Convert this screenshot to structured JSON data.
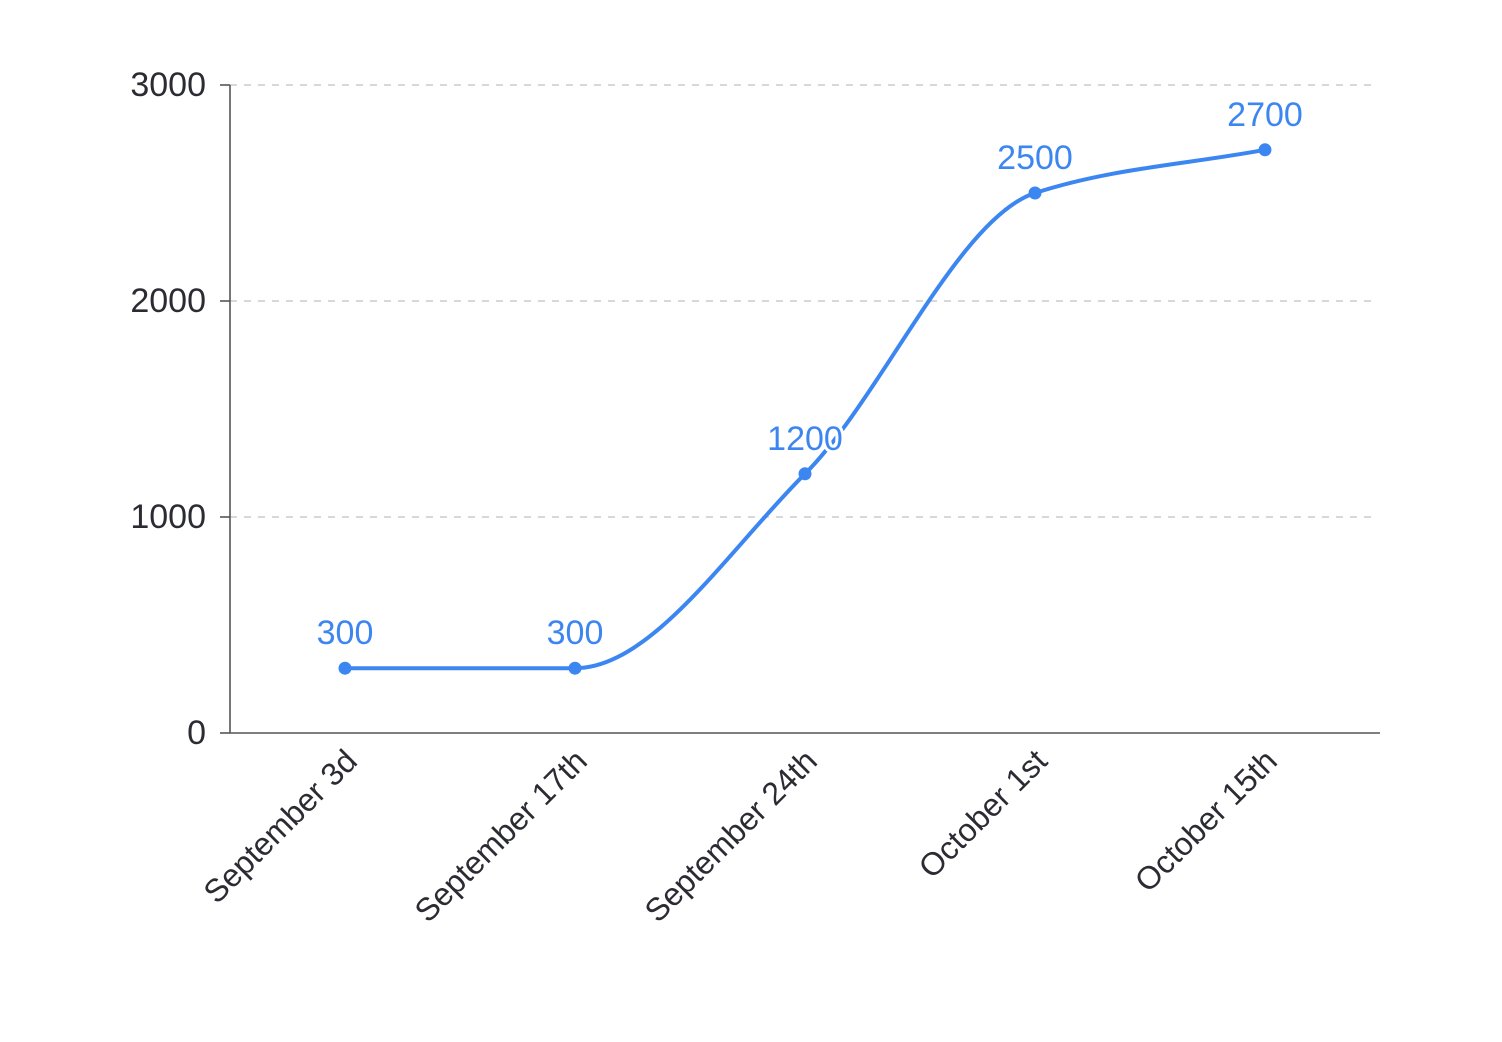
{
  "chart_data": {
    "type": "line",
    "title": "",
    "xlabel": "",
    "ylabel": "",
    "categories": [
      "September 3d",
      "September 17th",
      "September 24th",
      "October 1st",
      "October 15th"
    ],
    "series": [
      {
        "values": [
          300,
          300,
          1200,
          2500,
          2700
        ],
        "color": "#3b86f0"
      }
    ],
    "ylim": [
      0,
      3000
    ],
    "yticks": [
      0,
      1000,
      2000,
      3000
    ],
    "grid": true,
    "grid_style": "dashed",
    "line_style": "smooth",
    "data_labels": true,
    "legend": "none"
  }
}
